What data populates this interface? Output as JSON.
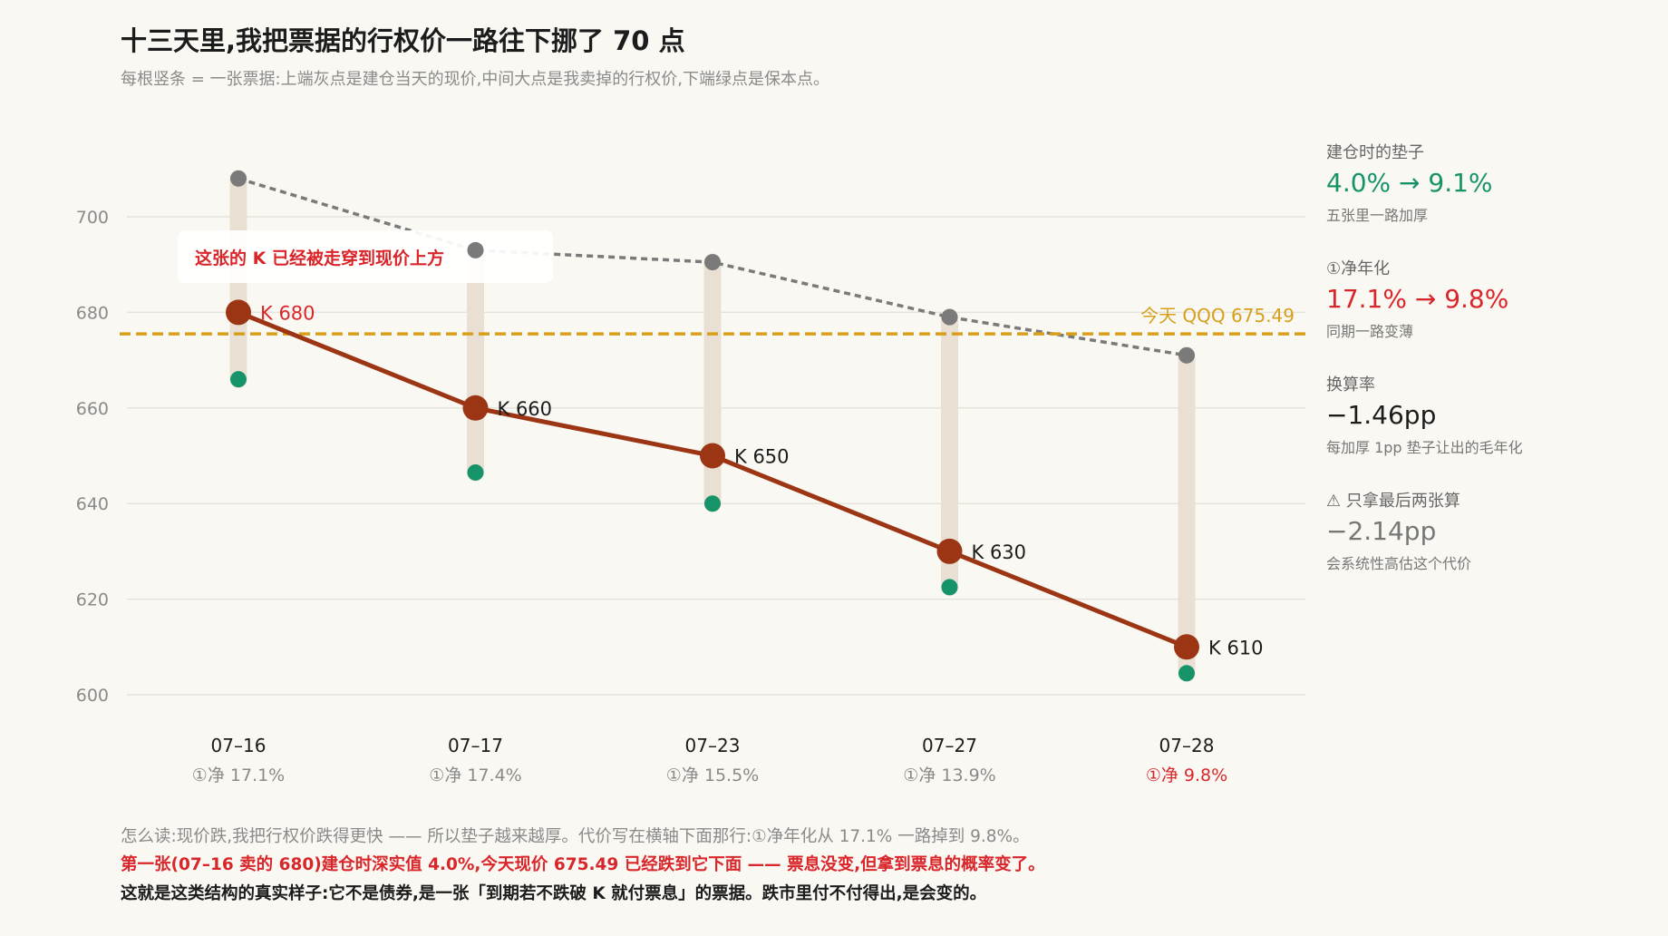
{
  "title": "十三天里,我把票据的行权价一路往下挪了 70 点",
  "subtitle": "每根竖条 = 一张票据:上端灰点是建仓当天的现价,中间大点是我卖掉的行权价,下端绿点是保本点。",
  "colors": {
    "strike": "#9b3514",
    "spot": "#7a7a7a",
    "breakeven": "#17936a",
    "bar": "#e9e0d3",
    "today": "#d6a01c",
    "grid": "#e6e3dc",
    "highlight": "#d9262b"
  },
  "chart_data": {
    "type": "line",
    "categories": [
      "07–16",
      "07–17",
      "07–23",
      "07–27",
      "07–28"
    ],
    "net_labels": [
      "①净 17.1%",
      "①净 17.4%",
      "①净 15.5%",
      "①净 13.9%",
      "①净 9.8%"
    ],
    "highlight_index": 4,
    "ylim": [
      597,
      712
    ],
    "yticks": [
      600,
      620,
      640,
      660,
      680,
      700
    ],
    "series": [
      {
        "key": "spot",
        "values": [
          708,
          693,
          690.5,
          679,
          671
        ]
      },
      {
        "key": "strike",
        "values": [
          680,
          660,
          650,
          630,
          610
        ]
      },
      {
        "key": "breakeven",
        "values": [
          666,
          646.5,
          640,
          622.5,
          604.5
        ]
      }
    ],
    "strike_labels": [
      "K 680",
      "K 660",
      "K 650",
      "K 630",
      "K 610"
    ],
    "today": {
      "value": 675.49,
      "label": "今天 QQQ 675.49"
    },
    "callout": {
      "text": "这张的 K 已经被走穿到现价上方",
      "index": 0
    }
  },
  "side": [
    {
      "label": "建仓时的垫子",
      "value": "4.0% → 9.1%",
      "note": "五张里一路加厚",
      "tone": "green"
    },
    {
      "label": "①净年化",
      "value": "17.1% → 9.8%",
      "note": "同期一路变薄",
      "tone": "red"
    },
    {
      "label": "换算率",
      "value": "−1.46pp",
      "note": "每加厚 1pp 垫子让出的毛年化",
      "tone": "dark"
    },
    {
      "label": "⚠ 只拿最后两张算",
      "value": "−2.14pp",
      "note": "会系统性高估这个代价",
      "tone": "grey"
    }
  ],
  "footer": {
    "line1": "怎么读:现价跌,我把行权价跌得更快 —— 所以垫子越来越厚。代价写在横轴下面那行:①净年化从 17.1% 一路掉到 9.8%。",
    "line2": "第一张(07–16 卖的 680)建仓时深实值 4.0%,今天现价 675.49 已经跌到它下面 —— 票息没变,但拿到票息的概率变了。",
    "line3": "这就是这类结构的真实样子:它不是债券,是一张「到期若不跌破 K 就付票息」的票据。跌市里付不付得出,是会变的。"
  }
}
